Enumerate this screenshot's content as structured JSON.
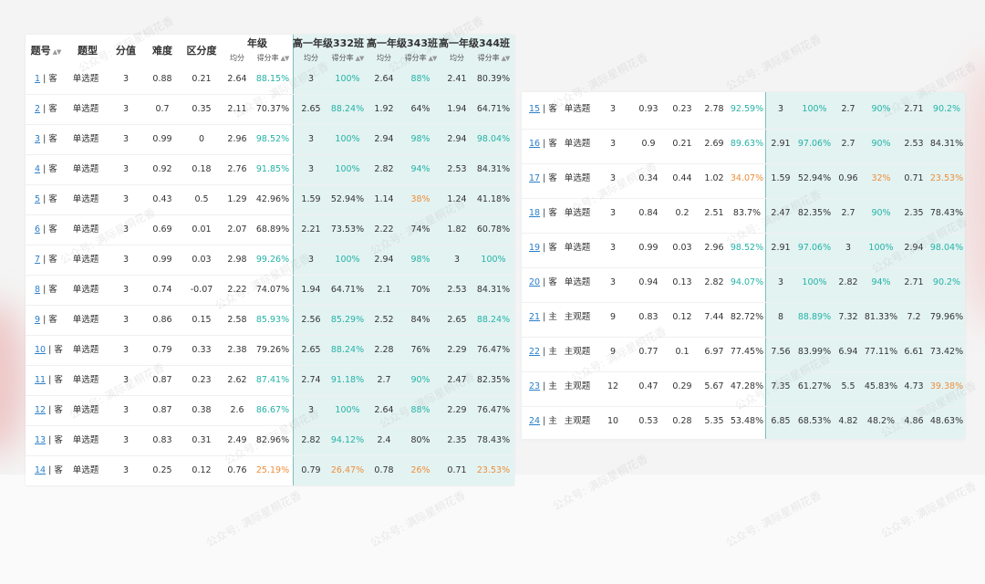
{
  "header": {
    "col_qnum": "题号",
    "col_type": "题型",
    "col_score": "分值",
    "col_difficulty": "难度",
    "col_discrimination": "区分度",
    "group_grade": "年级",
    "group_class_332": "高一年级332班",
    "group_class_343": "高一年级343班",
    "group_class_344": "高一年级344班",
    "sub_avg": "均分",
    "sub_rate": "得分率"
  },
  "watermark": "公众号: 满际星桐花香",
  "colors": {
    "teal": "#23b3a6",
    "orange": "#ee8e3b",
    "shade": "#e3f3f2"
  },
  "left_rows": [
    {
      "num": "1",
      "sep": "| 客",
      "type": "单选题",
      "score": "3",
      "diff": "0.88",
      "disc": "0.21",
      "g_avg": "2.64",
      "g_rate": "88.15%",
      "g_hl": "teal",
      "c1_avg": "3",
      "c1_rate": "100%",
      "c1_hl": "teal",
      "c2_avg": "2.64",
      "c2_rate": "88%",
      "c2_hl": "teal",
      "c3_avg": "2.41",
      "c3_rate": "80.39%",
      "c3_hl": ""
    },
    {
      "num": "2",
      "sep": "| 客",
      "type": "单选题",
      "score": "3",
      "diff": "0.7",
      "disc": "0.35",
      "g_avg": "2.11",
      "g_rate": "70.37%",
      "g_hl": "",
      "c1_avg": "2.65",
      "c1_rate": "88.24%",
      "c1_hl": "teal",
      "c2_avg": "1.92",
      "c2_rate": "64%",
      "c2_hl": "",
      "c3_avg": "1.94",
      "c3_rate": "64.71%",
      "c3_hl": ""
    },
    {
      "num": "3",
      "sep": "| 客",
      "type": "单选题",
      "score": "3",
      "diff": "0.99",
      "disc": "0",
      "g_avg": "2.96",
      "g_rate": "98.52%",
      "g_hl": "teal",
      "c1_avg": "3",
      "c1_rate": "100%",
      "c1_hl": "teal",
      "c2_avg": "2.94",
      "c2_rate": "98%",
      "c2_hl": "teal",
      "c3_avg": "2.94",
      "c3_rate": "98.04%",
      "c3_hl": "teal"
    },
    {
      "num": "4",
      "sep": "| 客",
      "type": "单选题",
      "score": "3",
      "diff": "0.92",
      "disc": "0.18",
      "g_avg": "2.76",
      "g_rate": "91.85%",
      "g_hl": "teal",
      "c1_avg": "3",
      "c1_rate": "100%",
      "c1_hl": "teal",
      "c2_avg": "2.82",
      "c2_rate": "94%",
      "c2_hl": "teal",
      "c3_avg": "2.53",
      "c3_rate": "84.31%",
      "c3_hl": ""
    },
    {
      "num": "5",
      "sep": "| 客",
      "type": "单选题",
      "score": "3",
      "diff": "0.43",
      "disc": "0.5",
      "g_avg": "1.29",
      "g_rate": "42.96%",
      "g_hl": "",
      "c1_avg": "1.59",
      "c1_rate": "52.94%",
      "c1_hl": "",
      "c2_avg": "1.14",
      "c2_rate": "38%",
      "c2_hl": "orange",
      "c3_avg": "1.24",
      "c3_rate": "41.18%",
      "c3_hl": ""
    },
    {
      "num": "6",
      "sep": "| 客",
      "type": "单选题",
      "score": "3",
      "diff": "0.69",
      "disc": "0.01",
      "g_avg": "2.07",
      "g_rate": "68.89%",
      "g_hl": "",
      "c1_avg": "2.21",
      "c1_rate": "73.53%",
      "c1_hl": "",
      "c2_avg": "2.22",
      "c2_rate": "74%",
      "c2_hl": "",
      "c3_avg": "1.82",
      "c3_rate": "60.78%",
      "c3_hl": ""
    },
    {
      "num": "7",
      "sep": "| 客",
      "type": "单选题",
      "score": "3",
      "diff": "0.99",
      "disc": "0.03",
      "g_avg": "2.98",
      "g_rate": "99.26%",
      "g_hl": "teal",
      "c1_avg": "3",
      "c1_rate": "100%",
      "c1_hl": "teal",
      "c2_avg": "2.94",
      "c2_rate": "98%",
      "c2_hl": "teal",
      "c3_avg": "3",
      "c3_rate": "100%",
      "c3_hl": "teal"
    },
    {
      "num": "8",
      "sep": "| 客",
      "type": "单选题",
      "score": "3",
      "diff": "0.74",
      "disc": "-0.07",
      "g_avg": "2.22",
      "g_rate": "74.07%",
      "g_hl": "",
      "c1_avg": "1.94",
      "c1_rate": "64.71%",
      "c1_hl": "",
      "c2_avg": "2.1",
      "c2_rate": "70%",
      "c2_hl": "",
      "c3_avg": "2.53",
      "c3_rate": "84.31%",
      "c3_hl": ""
    },
    {
      "num": "9",
      "sep": "| 客",
      "type": "单选题",
      "score": "3",
      "diff": "0.86",
      "disc": "0.15",
      "g_avg": "2.58",
      "g_rate": "85.93%",
      "g_hl": "teal",
      "c1_avg": "2.56",
      "c1_rate": "85.29%",
      "c1_hl": "teal",
      "c2_avg": "2.52",
      "c2_rate": "84%",
      "c2_hl": "",
      "c3_avg": "2.65",
      "c3_rate": "88.24%",
      "c3_hl": "teal"
    },
    {
      "num": "10",
      "sep": "| 客",
      "type": "单选题",
      "score": "3",
      "diff": "0.79",
      "disc": "0.33",
      "g_avg": "2.38",
      "g_rate": "79.26%",
      "g_hl": "",
      "c1_avg": "2.65",
      "c1_rate": "88.24%",
      "c1_hl": "teal",
      "c2_avg": "2.28",
      "c2_rate": "76%",
      "c2_hl": "",
      "c3_avg": "2.29",
      "c3_rate": "76.47%",
      "c3_hl": ""
    },
    {
      "num": "11",
      "sep": "| 客",
      "type": "单选题",
      "score": "3",
      "diff": "0.87",
      "disc": "0.23",
      "g_avg": "2.62",
      "g_rate": "87.41%",
      "g_hl": "teal",
      "c1_avg": "2.74",
      "c1_rate": "91.18%",
      "c1_hl": "teal",
      "c2_avg": "2.7",
      "c2_rate": "90%",
      "c2_hl": "teal",
      "c3_avg": "2.47",
      "c3_rate": "82.35%",
      "c3_hl": ""
    },
    {
      "num": "12",
      "sep": "| 客",
      "type": "单选题",
      "score": "3",
      "diff": "0.87",
      "disc": "0.38",
      "g_avg": "2.6",
      "g_rate": "86.67%",
      "g_hl": "teal",
      "c1_avg": "3",
      "c1_rate": "100%",
      "c1_hl": "teal",
      "c2_avg": "2.64",
      "c2_rate": "88%",
      "c2_hl": "teal",
      "c3_avg": "2.29",
      "c3_rate": "76.47%",
      "c3_hl": ""
    },
    {
      "num": "13",
      "sep": "| 客",
      "type": "单选题",
      "score": "3",
      "diff": "0.83",
      "disc": "0.31",
      "g_avg": "2.49",
      "g_rate": "82.96%",
      "g_hl": "",
      "c1_avg": "2.82",
      "c1_rate": "94.12%",
      "c1_hl": "teal",
      "c2_avg": "2.4",
      "c2_rate": "80%",
      "c2_hl": "",
      "c3_avg": "2.35",
      "c3_rate": "78.43%",
      "c3_hl": ""
    },
    {
      "num": "14",
      "sep": "| 客",
      "type": "单选题",
      "score": "3",
      "diff": "0.25",
      "disc": "0.12",
      "g_avg": "0.76",
      "g_rate": "25.19%",
      "g_hl": "orange",
      "c1_avg": "0.79",
      "c1_rate": "26.47%",
      "c1_hl": "orange",
      "c2_avg": "0.78",
      "c2_rate": "26%",
      "c2_hl": "orange",
      "c3_avg": "0.71",
      "c3_rate": "23.53%",
      "c3_hl": "orange"
    }
  ],
  "right_rows": [
    {
      "num": "15",
      "sep": "| 客",
      "type": "单选题",
      "score": "3",
      "diff": "0.93",
      "disc": "0.23",
      "g_avg": "2.78",
      "g_rate": "92.59%",
      "g_hl": "teal",
      "c1_avg": "3",
      "c1_rate": "100%",
      "c1_hl": "teal",
      "c2_avg": "2.7",
      "c2_rate": "90%",
      "c2_hl": "teal",
      "c3_avg": "2.71",
      "c3_rate": "90.2%",
      "c3_hl": "teal"
    },
    {
      "num": "16",
      "sep": "| 客",
      "type": "单选题",
      "score": "3",
      "diff": "0.9",
      "disc": "0.21",
      "g_avg": "2.69",
      "g_rate": "89.63%",
      "g_hl": "teal",
      "c1_avg": "2.91",
      "c1_rate": "97.06%",
      "c1_hl": "teal",
      "c2_avg": "2.7",
      "c2_rate": "90%",
      "c2_hl": "teal",
      "c3_avg": "2.53",
      "c3_rate": "84.31%",
      "c3_hl": ""
    },
    {
      "num": "17",
      "sep": "| 客",
      "type": "单选题",
      "score": "3",
      "diff": "0.34",
      "disc": "0.44",
      "g_avg": "1.02",
      "g_rate": "34.07%",
      "g_hl": "orange",
      "c1_avg": "1.59",
      "c1_rate": "52.94%",
      "c1_hl": "",
      "c2_avg": "0.96",
      "c2_rate": "32%",
      "c2_hl": "orange",
      "c3_avg": "0.71",
      "c3_rate": "23.53%",
      "c3_hl": "orange"
    },
    {
      "num": "18",
      "sep": "| 客",
      "type": "单选题",
      "score": "3",
      "diff": "0.84",
      "disc": "0.2",
      "g_avg": "2.51",
      "g_rate": "83.7%",
      "g_hl": "",
      "c1_avg": "2.47",
      "c1_rate": "82.35%",
      "c1_hl": "",
      "c2_avg": "2.7",
      "c2_rate": "90%",
      "c2_hl": "teal",
      "c3_avg": "2.35",
      "c3_rate": "78.43%",
      "c3_hl": ""
    },
    {
      "num": "19",
      "sep": "| 客",
      "type": "单选题",
      "score": "3",
      "diff": "0.99",
      "disc": "0.03",
      "g_avg": "2.96",
      "g_rate": "98.52%",
      "g_hl": "teal",
      "c1_avg": "2.91",
      "c1_rate": "97.06%",
      "c1_hl": "teal",
      "c2_avg": "3",
      "c2_rate": "100%",
      "c2_hl": "teal",
      "c3_avg": "2.94",
      "c3_rate": "98.04%",
      "c3_hl": "teal"
    },
    {
      "num": "20",
      "sep": "| 客",
      "type": "单选题",
      "score": "3",
      "diff": "0.94",
      "disc": "0.13",
      "g_avg": "2.82",
      "g_rate": "94.07%",
      "g_hl": "teal",
      "c1_avg": "3",
      "c1_rate": "100%",
      "c1_hl": "teal",
      "c2_avg": "2.82",
      "c2_rate": "94%",
      "c2_hl": "teal",
      "c3_avg": "2.71",
      "c3_rate": "90.2%",
      "c3_hl": "teal"
    },
    {
      "num": "21",
      "sep": "| 主",
      "type": "主观题",
      "score": "9",
      "diff": "0.83",
      "disc": "0.12",
      "g_avg": "7.44",
      "g_rate": "82.72%",
      "g_hl": "",
      "c1_avg": "8",
      "c1_rate": "88.89%",
      "c1_hl": "teal",
      "c2_avg": "7.32",
      "c2_rate": "81.33%",
      "c2_hl": "",
      "c3_avg": "7.2",
      "c3_rate": "79.96%",
      "c3_hl": ""
    },
    {
      "num": "22",
      "sep": "| 主",
      "type": "主观题",
      "score": "9",
      "diff": "0.77",
      "disc": "0.1",
      "g_avg": "6.97",
      "g_rate": "77.45%",
      "g_hl": "",
      "c1_avg": "7.56",
      "c1_rate": "83.99%",
      "c1_hl": "",
      "c2_avg": "6.94",
      "c2_rate": "77.11%",
      "c2_hl": "",
      "c3_avg": "6.61",
      "c3_rate": "73.42%",
      "c3_hl": ""
    },
    {
      "num": "23",
      "sep": "| 主",
      "type": "主观题",
      "score": "12",
      "diff": "0.47",
      "disc": "0.29",
      "g_avg": "5.67",
      "g_rate": "47.28%",
      "g_hl": "",
      "c1_avg": "7.35",
      "c1_rate": "61.27%",
      "c1_hl": "",
      "c2_avg": "5.5",
      "c2_rate": "45.83%",
      "c2_hl": "",
      "c3_avg": "4.73",
      "c3_rate": "39.38%",
      "c3_hl": "orange"
    },
    {
      "num": "24",
      "sep": "| 主",
      "type": "主观题",
      "score": "10",
      "diff": "0.53",
      "disc": "0.28",
      "g_avg": "5.35",
      "g_rate": "53.48%",
      "g_hl": "",
      "c1_avg": "6.85",
      "c1_rate": "68.53%",
      "c1_hl": "",
      "c2_avg": "4.82",
      "c2_rate": "48.2%",
      "c2_hl": "",
      "c3_avg": "4.86",
      "c3_rate": "48.63%",
      "c3_hl": ""
    }
  ]
}
